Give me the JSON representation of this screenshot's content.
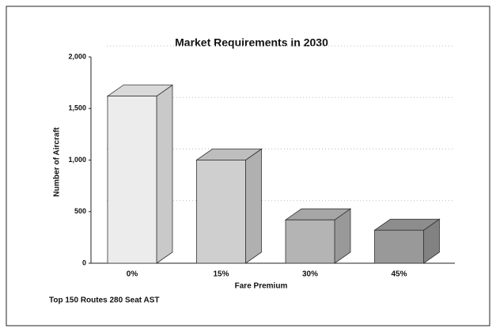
{
  "chart_data": {
    "type": "bar3d",
    "title": "Market Requirements in 2030",
    "xlabel": "Fare Premium",
    "ylabel": "Number of Aircraft",
    "note": "Top 150 Routes 280 Seat AST",
    "categories": [
      "0%",
      "15%",
      "30%",
      "45%"
    ],
    "values": [
      1620,
      1000,
      420,
      320
    ],
    "colors": [
      "#ececec",
      "#cfcfcf",
      "#b4b4b4",
      "#999999"
    ],
    "ylim": [
      0,
      2000
    ],
    "yticks": [
      0,
      500,
      {
        "value": 1000,
        "label": "1,000"
      },
      {
        "value": 1500,
        "label": "1,500"
      },
      {
        "value": 2000,
        "label": "2,000"
      }
    ],
    "grid": true
  }
}
